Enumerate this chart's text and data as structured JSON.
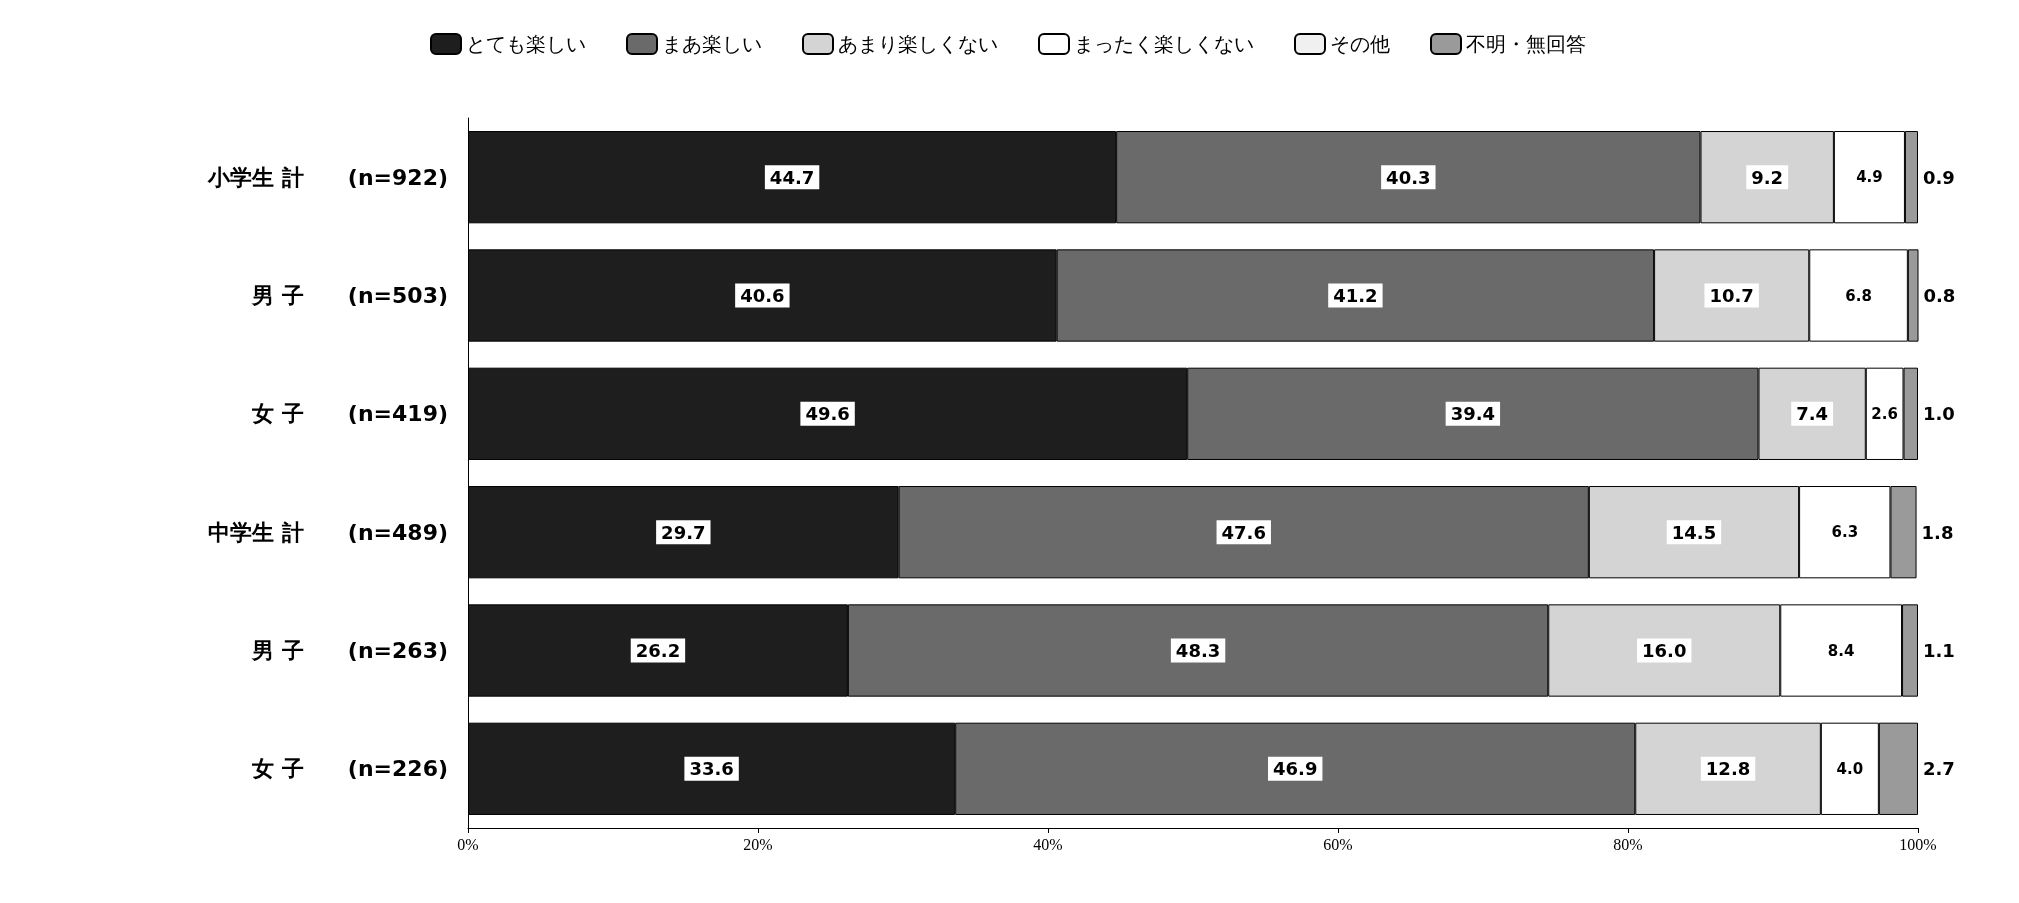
{
  "chart_data": {
    "type": "bar",
    "orientation": "horizontal",
    "stacked": true,
    "categories": [
      "小学生 計　　(n=922)",
      "男 子　　(n=503)",
      "女 子　　(n=419)",
      "中学生 計　　(n=489)",
      "男 子　　(n=263)",
      "女 子　　(n=226)"
    ],
    "series": [
      {
        "name": "とても楽しい",
        "color": "#1e1e1e",
        "values": [
          44.7,
          40.6,
          49.6,
          29.7,
          26.2,
          33.6
        ],
        "value_labels": [
          "44.7",
          "40.6",
          "49.6",
          "29.7",
          "26.2",
          "33.6"
        ]
      },
      {
        "name": "まあ楽しい",
        "color": "#6a6a6a",
        "values": [
          40.3,
          41.2,
          39.4,
          47.6,
          48.3,
          46.9
        ],
        "value_labels": [
          "40.3",
          "41.2",
          "39.4",
          "47.6",
          "48.3",
          "46.9"
        ]
      },
      {
        "name": "あまり楽しくない",
        "color": "#d4d4d4",
        "values": [
          9.2,
          10.7,
          7.4,
          14.5,
          16.0,
          12.8
        ],
        "value_labels": [
          "9.2",
          "10.7",
          "7.4",
          "14.5",
          "16.0",
          "12.8"
        ]
      },
      {
        "name": "まったく楽しくない",
        "color": "#ffffff",
        "values": [
          4.9,
          6.8,
          2.6,
          6.3,
          8.4,
          4.0
        ],
        "value_labels": [
          "4.9",
          "6.8",
          "2.6",
          "6.3",
          "8.4",
          "4.0"
        ]
      },
      {
        "name": "その他",
        "color": "#f0f0f0",
        "values": [
          null,
          null,
          null,
          null,
          null,
          null
        ]
      },
      {
        "name": "不明・無回答",
        "color": "#9a9a9a",
        "values": [
          0.9,
          0.8,
          1.0,
          1.8,
          1.1,
          2.7
        ],
        "value_labels": [
          "0.9",
          "0.8",
          "1.0",
          "1.8",
          "1.1",
          "2.7"
        ]
      }
    ],
    "xlim": [
      0,
      100
    ],
    "xticks": [
      {
        "value": 0,
        "label": "0%"
      },
      {
        "value": 20,
        "label": "20%"
      },
      {
        "value": 40,
        "label": "40%"
      },
      {
        "value": 60,
        "label": "60%"
      },
      {
        "value": 80,
        "label": "80%"
      },
      {
        "value": 100,
        "label": "100%"
      }
    ],
    "grid": false,
    "legend": "top"
  }
}
